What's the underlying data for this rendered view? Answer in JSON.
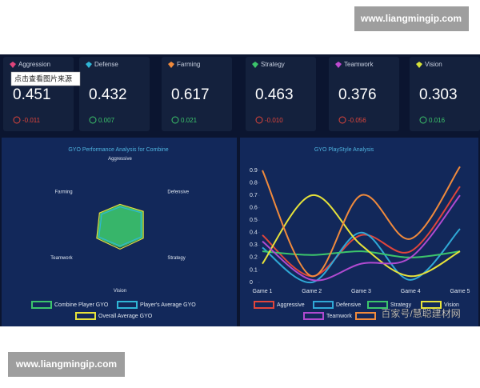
{
  "watermarks": {
    "top": "www.liangmingip.com",
    "bottom": "www.liangmingip.com",
    "overlay": "百家号/慧聪建材网"
  },
  "tooltip": "点击查看图片来源",
  "cards": [
    {
      "label": "Aggression",
      "value": "0.451",
      "delta": "-0.011",
      "trend": "down",
      "color": "#e0457b"
    },
    {
      "label": "Defense",
      "value": "0.432",
      "delta": "0.007",
      "trend": "up",
      "color": "#2fb6d6"
    },
    {
      "label": "Farming",
      "value": "0.617",
      "delta": "0.021",
      "trend": "up",
      "color": "#f08a3c"
    },
    {
      "label": "Strategy",
      "value": "0.463",
      "delta": "-0.010",
      "trend": "down",
      "color": "#3cc46b"
    },
    {
      "label": "Teamwork",
      "value": "0.376",
      "delta": "-0.056",
      "trend": "down",
      "color": "#c04ad0"
    },
    {
      "label": "Vision",
      "value": "0.303",
      "delta": "0.016",
      "trend": "up",
      "color": "#d6e23a"
    }
  ],
  "chart_data": [
    {
      "type": "radar",
      "title": "GYO Performance Analysis for Combine",
      "categories": [
        "Aggressive",
        "Defensive",
        "Strategy",
        "Vision",
        "Teamwork",
        "Farming"
      ],
      "rlim": [
        0,
        1
      ],
      "series": [
        {
          "name": "Combine Player GYO",
          "color": "#3cc46b",
          "values": [
            0.3,
            0.4,
            0.4,
            0.35,
            0.4,
            0.35
          ]
        },
        {
          "name": "Player's Average GYO",
          "color": "#2fb6d6",
          "values": [
            0.28,
            0.38,
            0.38,
            0.33,
            0.38,
            0.33
          ]
        },
        {
          "name": "Overall Average GYO",
          "color": "#e6e23a",
          "values": [
            0.32,
            0.42,
            0.42,
            0.38,
            0.42,
            0.37
          ]
        }
      ]
    },
    {
      "type": "line",
      "title": "GYO PlayStyle Analysis",
      "categories": [
        "Game 1",
        "Game 2",
        "Game 3",
        "Game 4",
        "Game 5"
      ],
      "ylim": [
        0,
        1
      ],
      "yticks": [
        0,
        0.1,
        0.2,
        0.3,
        0.4,
        0.5,
        0.6,
        0.7,
        0.8,
        0.9
      ],
      "series": [
        {
          "name": "Aggressive",
          "color": "#e0453b",
          "values": [
            0.38,
            0.05,
            0.38,
            0.25,
            0.77
          ]
        },
        {
          "name": "Defensive",
          "color": "#2fa8d6",
          "values": [
            0.28,
            0.0,
            0.4,
            0.02,
            0.43
          ]
        },
        {
          "name": "Strategy",
          "color": "#3cc46b",
          "values": [
            0.25,
            0.22,
            0.25,
            0.2,
            0.25
          ]
        },
        {
          "name": "Vision",
          "color": "#e6e23a",
          "values": [
            0.15,
            0.7,
            0.3,
            0.05,
            0.25
          ]
        },
        {
          "name": "Teamwork",
          "color": "#b04ad0",
          "values": [
            0.33,
            0.02,
            0.15,
            0.2,
            0.7
          ]
        },
        {
          "color": "#f08a3c",
          "values": [
            0.9,
            0.05,
            0.7,
            0.35,
            0.93
          ]
        }
      ]
    }
  ]
}
